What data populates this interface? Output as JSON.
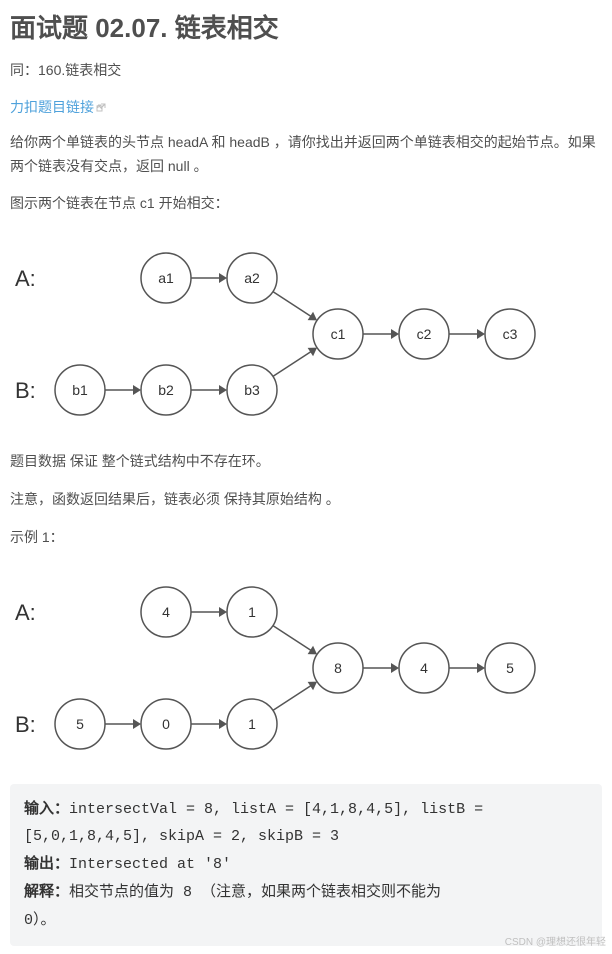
{
  "title": "面试题 02.07. 链表相交",
  "subtitle": "同：160.链表相交",
  "link": "力扣题目链接",
  "p1": "给你两个单链表的头节点 headA 和 headB ，请你找出并返回两个单链表相交的起始节点。如果两个链表没有交点，返回 null 。",
  "p2": "图示两个链表在节点 c1 开始相交：",
  "p3": "题目数据 保证 整个链式结构中不存在环。",
  "p4": "注意，函数返回结果后，链表必须 保持其原始结构 。",
  "p5": "示例 1：",
  "diagram1": {
    "labelA": "A:",
    "labelB": "B:",
    "listA": [
      "a1",
      "a2"
    ],
    "listB": [
      "b1",
      "b2",
      "b3"
    ],
    "common": [
      "c1",
      "c2",
      "c3"
    ],
    "nodeRadius": 25,
    "strokeColor": "#555555",
    "fillColor": "#ffffff",
    "textColor": "#333333",
    "labelFontSize": 22,
    "nodeFontSize": 14
  },
  "diagram2": {
    "labelA": "A:",
    "labelB": "B:",
    "listA": [
      "4",
      "1"
    ],
    "listB": [
      "5",
      "0",
      "1"
    ],
    "common": [
      "8",
      "4",
      "5"
    ],
    "nodeRadius": 25,
    "strokeColor": "#555555",
    "fillColor": "#ffffff",
    "textColor": "#333333",
    "labelFontSize": 22,
    "nodeFontSize": 14
  },
  "code": {
    "inLabel": "输入：",
    "inText1": "intersectVal = 8, listA = [4,1,8,4,5], listB = ",
    "inText2": "[5,0,1,8,4,5], skipA = 2, skipB = 3",
    "outLabel": "输出：",
    "outText": "Intersected at '8'",
    "expLabel": "解释：",
    "expText1": "相交节点的值为 8 （注意，如果两个链表相交则不能为 ",
    "expText2": "0）。"
  },
  "watermark": "CSDN @理想还很年轻"
}
